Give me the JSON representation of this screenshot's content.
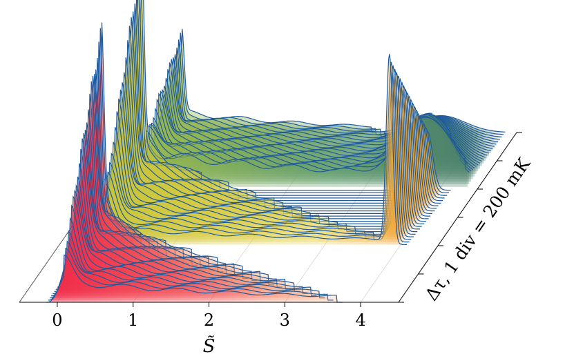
{
  "chart_data": {
    "type": "ridgeline-3d",
    "xlabel": "S̃",
    "x_ticks": [
      0,
      1,
      2,
      3,
      4
    ],
    "xlim": [
      -0.5,
      4.5
    ],
    "depth_label": "Δτ, 1 div = 200 mK",
    "depth_divisions": 6,
    "curve_color": "#1f5a9b",
    "fill_colors": {
      "front": "#f0304a",
      "middle": "#d8c43a",
      "orange": "#f5a020",
      "back": "#4e8a60"
    },
    "groups": [
      {
        "name": "front",
        "count": 26,
        "peak_x": 0.08,
        "peak_height": 1.0,
        "tail_length": [
          0.3,
          3.6
        ],
        "tail_level": [
          0.35,
          0.12
        ],
        "right_peak_x": null
      },
      {
        "name": "middle",
        "count": 22,
        "peak_x": 0.08,
        "peak_height": 1.15,
        "tail_length": [
          0.8,
          3.8
        ],
        "tail_level": [
          0.3,
          0.1
        ],
        "right_peak_x": 3.85
      },
      {
        "name": "back",
        "count": 22,
        "peak_x": 0.08,
        "peak_height": 0.5,
        "tail_length": [
          2.5,
          4.3
        ],
        "tail_level": [
          0.12,
          0.2
        ],
        "right_peak_x": null
      }
    ]
  }
}
